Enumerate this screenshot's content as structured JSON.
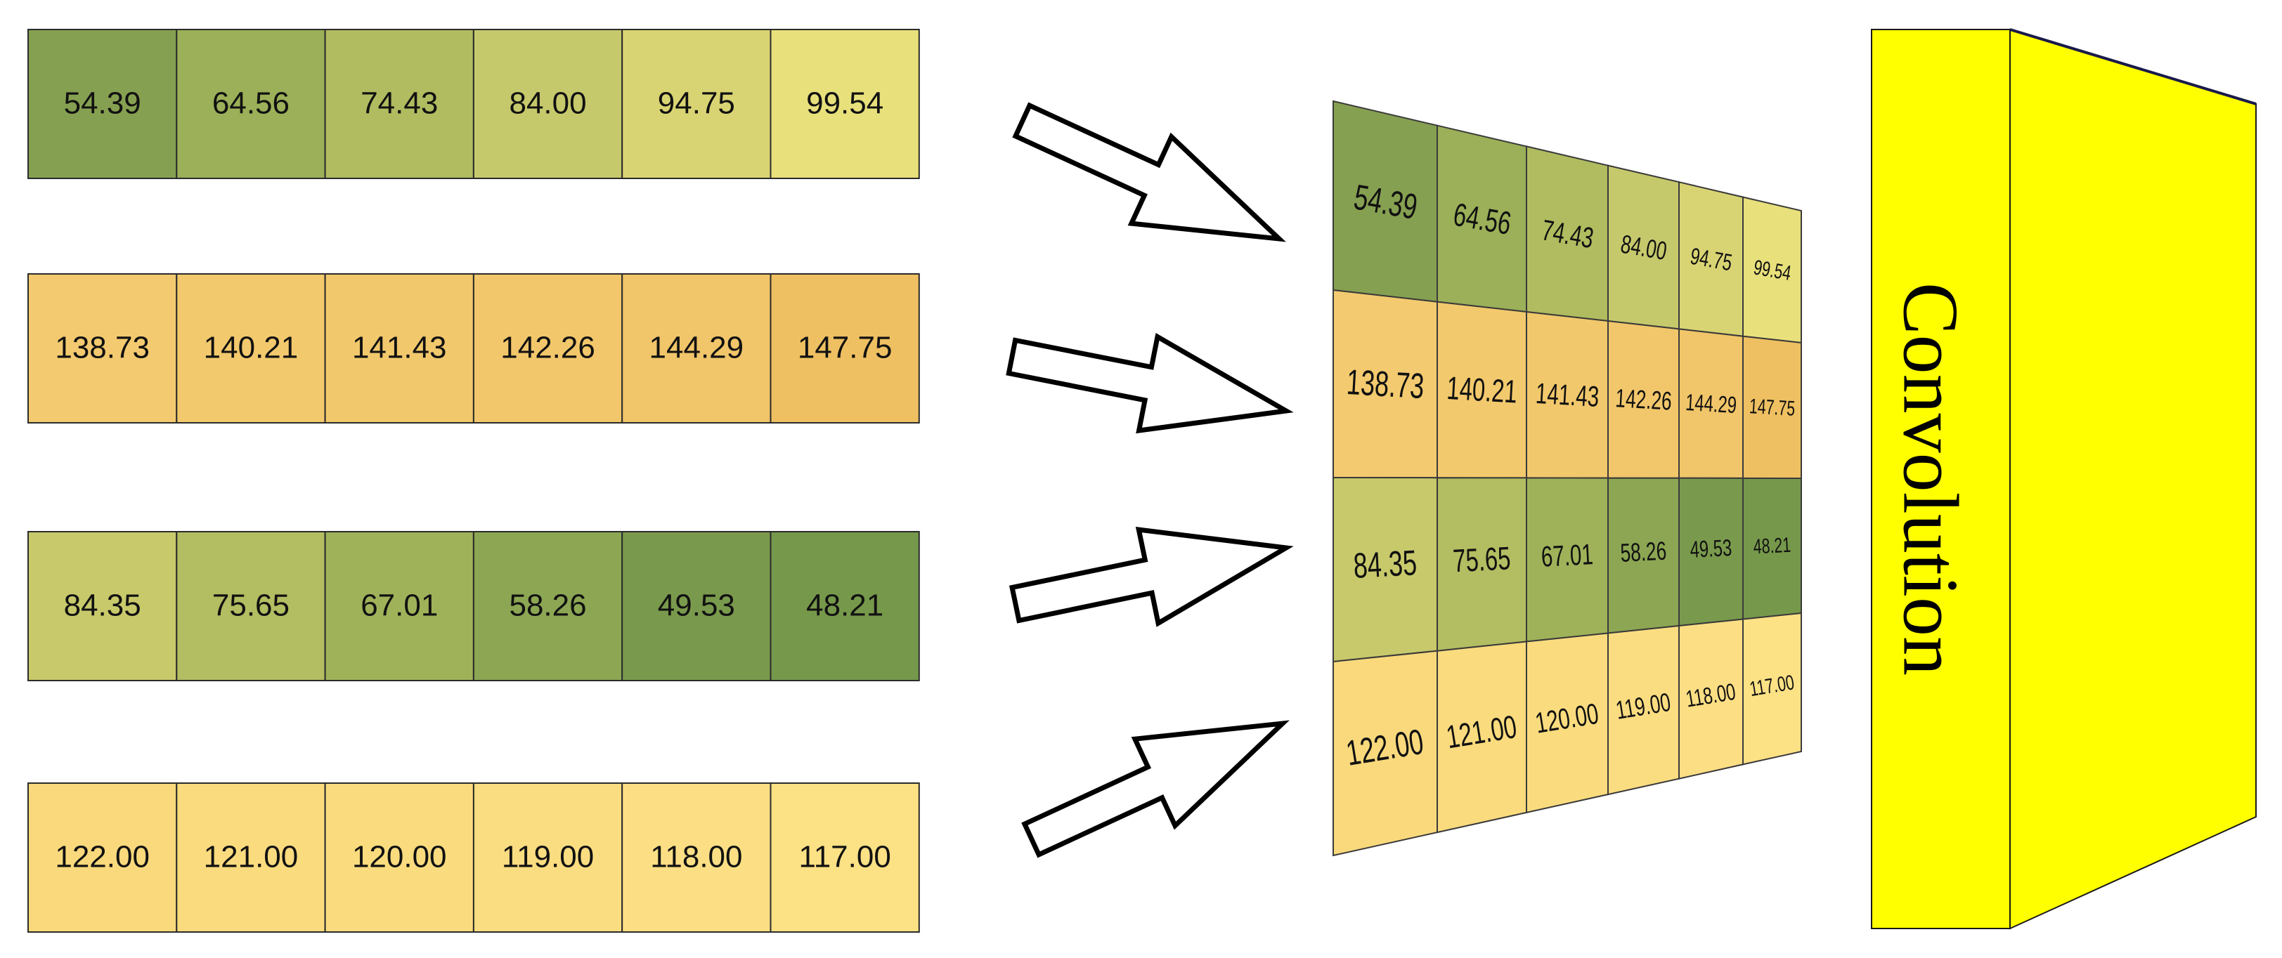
{
  "rows": [
    {
      "values": [
        "54.39",
        "64.56",
        "74.43",
        "84.00",
        "94.75",
        "99.54"
      ],
      "colors": [
        "#86a051",
        "#9bb058",
        "#b0bc5f",
        "#c6c96b",
        "#d9d473",
        "#e8e07b"
      ]
    },
    {
      "values": [
        "138.73",
        "140.21",
        "141.43",
        "142.26",
        "144.29",
        "147.75"
      ],
      "colors": [
        "#f3ca6f",
        "#f3c96d",
        "#f2c86c",
        "#f2c76b",
        "#f1c569",
        "#efc062"
      ]
    },
    {
      "values": [
        "84.35",
        "75.65",
        "67.01",
        "58.26",
        "49.53",
        "48.21"
      ],
      "colors": [
        "#c8c96b",
        "#b3bd61",
        "#9fb259",
        "#8ca653",
        "#799a4c",
        "#76984b"
      ]
    },
    {
      "values": [
        "122.00",
        "121.00",
        "120.00",
        "119.00",
        "118.00",
        "117.00"
      ],
      "colors": [
        "#f9d97c",
        "#fadb7e",
        "#fadc7f",
        "#fbdd81",
        "#fcdf84",
        "#fde185"
      ]
    }
  ],
  "block_label": "Convolution",
  "block_colors": {
    "front": "#ffff00",
    "side": "#ffff00",
    "edge": "#1a1a4a"
  }
}
